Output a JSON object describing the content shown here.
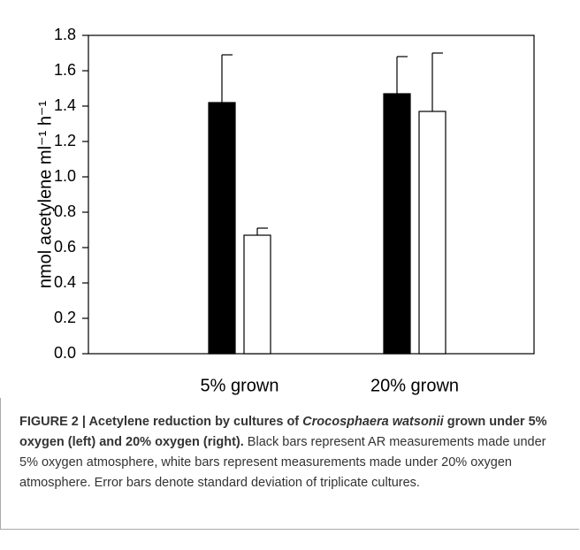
{
  "chart_data": {
    "type": "bar",
    "y_label": "nmol acetylene ml⁻¹ h⁻¹",
    "categories": [
      "5% grown",
      "20% grown"
    ],
    "series": [
      {
        "color": "#000000",
        "values": [
          1.42,
          1.47
        ],
        "errors": [
          0.27,
          0.21
        ]
      },
      {
        "color": "#ffffff",
        "values": [
          0.67,
          1.37
        ],
        "errors": [
          0.04,
          0.33
        ]
      }
    ],
    "ylim": [
      0,
      1.8
    ],
    "yticks": [
      {
        "value": 0,
        "label": "0.0"
      },
      0.2,
      0.4,
      0.6,
      0.8,
      {
        "value": 1,
        "label": "1.0"
      },
      1.2,
      1.4,
      1.6,
      1.8
    ]
  },
  "caption": {
    "label": "FIGURE 2 | Acetylene reduction by cultures of ",
    "species": "Crocosphaera watsonii",
    "title_rest": " grown under 5% oxygen (left) and 20% oxygen (right).",
    "text": " Black bars represent AR measurements made under 5% oxygen atmosphere, white bars represent measurements made under 20% oxygen atmosphere. Error bars denote standard deviation of triplicate cultures."
  }
}
